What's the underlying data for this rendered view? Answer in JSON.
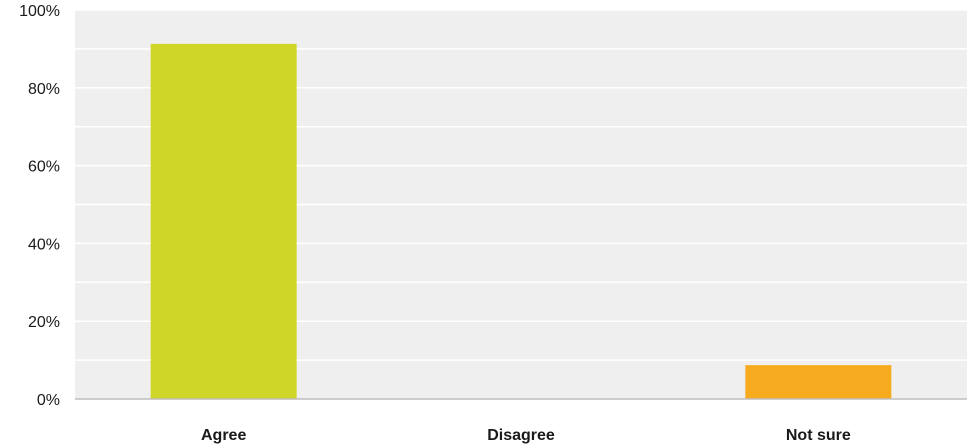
{
  "chart_data": {
    "type": "bar",
    "categories": [
      "Agree",
      "Disagree",
      "Not sure"
    ],
    "values": [
      91.3,
      0,
      8.7
    ],
    "unit": "%",
    "ylim": [
      0,
      100
    ],
    "yticks": [
      "0%",
      "20%",
      "40%",
      "60%",
      "80%",
      "100%"
    ],
    "ytick_values": [
      0,
      20,
      40,
      60,
      80,
      100
    ],
    "grid": true,
    "colors": {
      "plot_background": "#efefef",
      "gridline": "#ffffff",
      "axis": "#bdbdbd",
      "bars": [
        "#cfd628",
        "#cfd628",
        "#f6ab1f"
      ]
    }
  }
}
